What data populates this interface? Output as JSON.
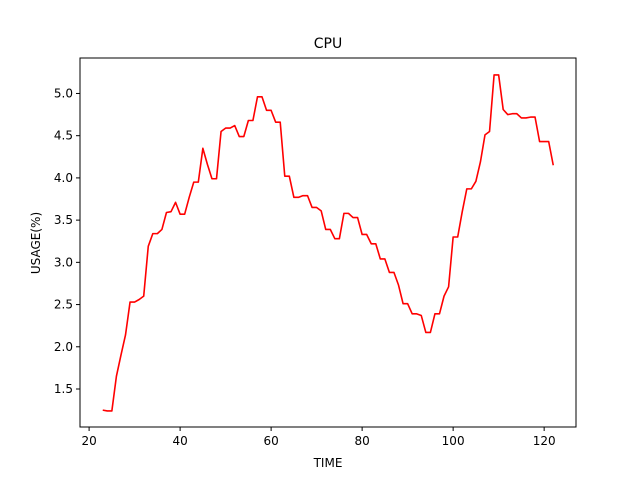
{
  "chart_data": {
    "type": "line",
    "title": "CPU",
    "xlabel": "TIME",
    "ylabel": "USAGE(%)",
    "xlim": [
      18,
      127
    ],
    "ylim": [
      1.05,
      5.42
    ],
    "xticks": [
      20,
      40,
      60,
      80,
      100,
      120
    ],
    "yticks": [
      1.5,
      2.0,
      2.5,
      3.0,
      3.5,
      4.0,
      4.5,
      5.0
    ],
    "xtick_labels": [
      "20",
      "40",
      "60",
      "80",
      "100",
      "120"
    ],
    "ytick_labels": [
      "1.5",
      "2.0",
      "2.5",
      "3.0",
      "3.5",
      "4.0",
      "4.5",
      "5.0"
    ],
    "grid": false,
    "series": [
      {
        "color": "#ff0000",
        "x": [
          23,
          24,
          25,
          26,
          27,
          28,
          29,
          30,
          31,
          32,
          33,
          34,
          35,
          36,
          37,
          38,
          39,
          40,
          41,
          42,
          43,
          44,
          45,
          46,
          47,
          48,
          49,
          50,
          51,
          52,
          53,
          54,
          55,
          56,
          57,
          58,
          59,
          60,
          61,
          62,
          63,
          64,
          65,
          66,
          67,
          68,
          69,
          70,
          71,
          72,
          73,
          74,
          75,
          76,
          77,
          78,
          79,
          80,
          81,
          82,
          83,
          84,
          85,
          86,
          87,
          88,
          89,
          90,
          91,
          92,
          93,
          94,
          95,
          96,
          97,
          98,
          99,
          100,
          101,
          102,
          103,
          104,
          105,
          106,
          107,
          108,
          109,
          110,
          111,
          112,
          113,
          114,
          115,
          116,
          117,
          118,
          119,
          120,
          121,
          122
        ],
        "y": [
          1.25,
          1.24,
          1.24,
          1.65,
          1.9,
          2.14,
          2.53,
          2.53,
          2.56,
          2.6,
          3.19,
          3.34,
          3.34,
          3.39,
          3.59,
          3.6,
          3.71,
          3.57,
          3.57,
          3.77,
          3.95,
          3.95,
          4.35,
          4.16,
          3.99,
          3.99,
          4.55,
          4.59,
          4.59,
          4.62,
          4.49,
          4.49,
          4.68,
          4.68,
          4.96,
          4.96,
          4.8,
          4.8,
          4.66,
          4.66,
          4.02,
          4.02,
          3.77,
          3.77,
          3.79,
          3.79,
          3.65,
          3.65,
          3.61,
          3.39,
          3.39,
          3.28,
          3.28,
          3.58,
          3.58,
          3.53,
          3.53,
          3.33,
          3.33,
          3.22,
          3.22,
          3.04,
          3.04,
          2.88,
          2.88,
          2.73,
          2.51,
          2.51,
          2.39,
          2.39,
          2.37,
          2.17,
          2.17,
          2.39,
          2.39,
          2.6,
          2.71,
          3.3,
          3.3,
          3.6,
          3.87,
          3.87,
          3.96,
          4.19,
          4.51,
          4.55,
          5.22,
          5.22,
          4.81,
          4.75,
          4.76,
          4.76,
          4.71,
          4.71,
          4.72,
          4.72,
          4.43,
          4.43,
          4.43,
          4.15
        ]
      }
    ]
  }
}
